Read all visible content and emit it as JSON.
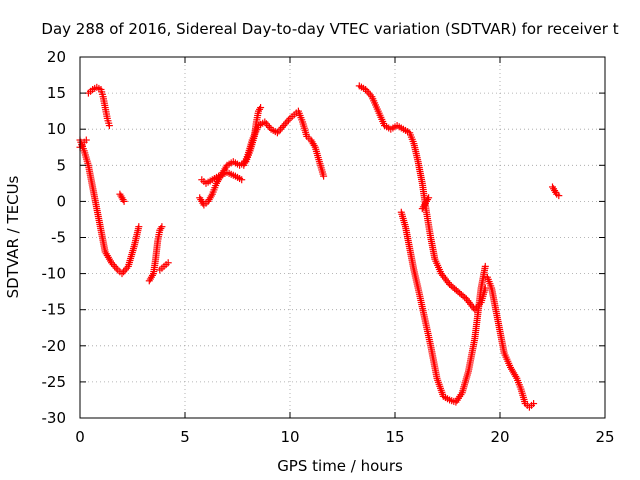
{
  "chart_data": {
    "type": "scatter",
    "title": "Day 288 of 2016, Sidereal Day-to-day VTEC variation (SDTVAR) for receiver t",
    "xlabel": "GPS time / hours",
    "ylabel": "SDTVAR / TECUs",
    "xlim": [
      0,
      25
    ],
    "ylim": [
      -30,
      20
    ],
    "x_ticks": [
      0,
      5,
      10,
      15,
      20,
      25
    ],
    "y_ticks": [
      -30,
      -25,
      -20,
      -15,
      -10,
      -5,
      0,
      5,
      10,
      15,
      20
    ],
    "grid": true,
    "legend": "none",
    "marker": "plus",
    "color": "#ff0000",
    "segments": [
      {
        "x": [
          0.0,
          0.2,
          0.4,
          0.6,
          0.8,
          1.0,
          1.2,
          1.5,
          1.8,
          2.0,
          2.3,
          2.6,
          2.8
        ],
        "y": [
          8.5,
          7.0,
          5.0,
          2.0,
          -1.0,
          -4.0,
          -7.0,
          -8.5,
          -9.5,
          -10.0,
          -9.0,
          -6.0,
          -3.5
        ]
      },
      {
        "x": [
          0.0,
          0.1,
          0.2,
          0.3
        ],
        "y": [
          7.5,
          7.8,
          8.2,
          8.5
        ]
      },
      {
        "x": [
          0.4,
          0.6,
          0.8,
          1.0,
          1.1,
          1.2,
          1.3,
          1.4
        ],
        "y": [
          15.0,
          15.5,
          15.8,
          15.5,
          14.5,
          13.0,
          11.5,
          10.5
        ]
      },
      {
        "x": [
          1.9,
          2.0,
          2.1
        ],
        "y": [
          1.0,
          0.5,
          0.0
        ]
      },
      {
        "x": [
          3.3,
          3.5,
          3.6,
          3.7,
          3.8,
          3.9
        ],
        "y": [
          -11.0,
          -10.0,
          -8.0,
          -5.5,
          -4.0,
          -3.5
        ]
      },
      {
        "x": [
          3.8,
          4.0,
          4.2
        ],
        "y": [
          -9.5,
          -9.0,
          -8.5
        ]
      },
      {
        "x": [
          5.7,
          5.9,
          6.1,
          6.3,
          6.5,
          6.8,
          7.0,
          7.3,
          7.6,
          7.9,
          8.1,
          8.3,
          8.4,
          8.5,
          8.6
        ],
        "y": [
          0.5,
          -0.5,
          0.0,
          1.0,
          2.5,
          4.0,
          5.0,
          5.5,
          5.0,
          5.5,
          7.0,
          9.0,
          11.0,
          12.5,
          13.0
        ]
      },
      {
        "x": [
          5.8,
          6.0,
          6.3,
          6.6,
          7.0,
          7.4,
          7.7
        ],
        "y": [
          3.0,
          2.5,
          3.0,
          3.5,
          4.0,
          3.5,
          3.0
        ]
      },
      {
        "x": [
          7.8,
          8.0,
          8.2,
          8.5,
          8.8,
          9.1,
          9.4,
          9.7,
          10.0,
          10.2,
          10.4,
          10.6,
          10.8,
          11.0,
          11.2,
          11.4,
          11.6
        ],
        "y": [
          5.0,
          6.5,
          8.5,
          10.5,
          11.0,
          10.0,
          9.5,
          10.5,
          11.5,
          12.0,
          12.5,
          11.0,
          9.0,
          8.5,
          7.5,
          5.5,
          3.5
        ]
      },
      {
        "x": [
          13.3,
          13.6,
          13.9,
          14.2,
          14.5,
          14.8,
          15.1,
          15.4,
          15.7,
          15.9,
          16.1,
          16.3,
          16.5,
          16.7,
          16.9,
          17.2,
          17.6,
          18.0,
          18.4,
          18.8,
          19.1,
          19.3
        ],
        "y": [
          16.0,
          15.5,
          14.5,
          12.5,
          10.5,
          10.0,
          10.5,
          10.0,
          9.5,
          8.0,
          5.5,
          2.5,
          -1.5,
          -5.0,
          -8.0,
          -10.0,
          -11.5,
          -12.5,
          -13.5,
          -15.0,
          -14.0,
          -12.0
        ]
      },
      {
        "x": [
          15.3,
          15.5,
          15.7,
          15.9,
          16.1,
          16.4,
          16.7,
          17.0,
          17.3,
          17.6,
          17.9,
          18.2,
          18.5,
          18.8,
          19.1,
          19.3
        ],
        "y": [
          -1.5,
          -3.5,
          -6.5,
          -9.5,
          -12.0,
          -16.0,
          -20.0,
          -24.5,
          -27.0,
          -27.5,
          -27.8,
          -26.5,
          -23.5,
          -19.0,
          -12.0,
          -9.0
        ]
      },
      {
        "x": [
          16.3,
          16.4,
          16.5,
          16.6
        ],
        "y": [
          -1.0,
          -0.5,
          0.0,
          0.5
        ]
      },
      {
        "x": [
          19.4,
          19.6,
          19.8,
          20.0,
          20.2,
          20.5,
          20.8,
          21.0,
          21.2,
          21.4,
          21.6
        ],
        "y": [
          -10.5,
          -12.0,
          -15.0,
          -18.0,
          -21.0,
          -23.0,
          -24.5,
          -26.0,
          -28.0,
          -28.5,
          -28.0
        ]
      },
      {
        "x": [
          22.5,
          22.6,
          22.7,
          22.8
        ],
        "y": [
          2.0,
          1.5,
          1.0,
          0.8
        ]
      }
    ]
  }
}
